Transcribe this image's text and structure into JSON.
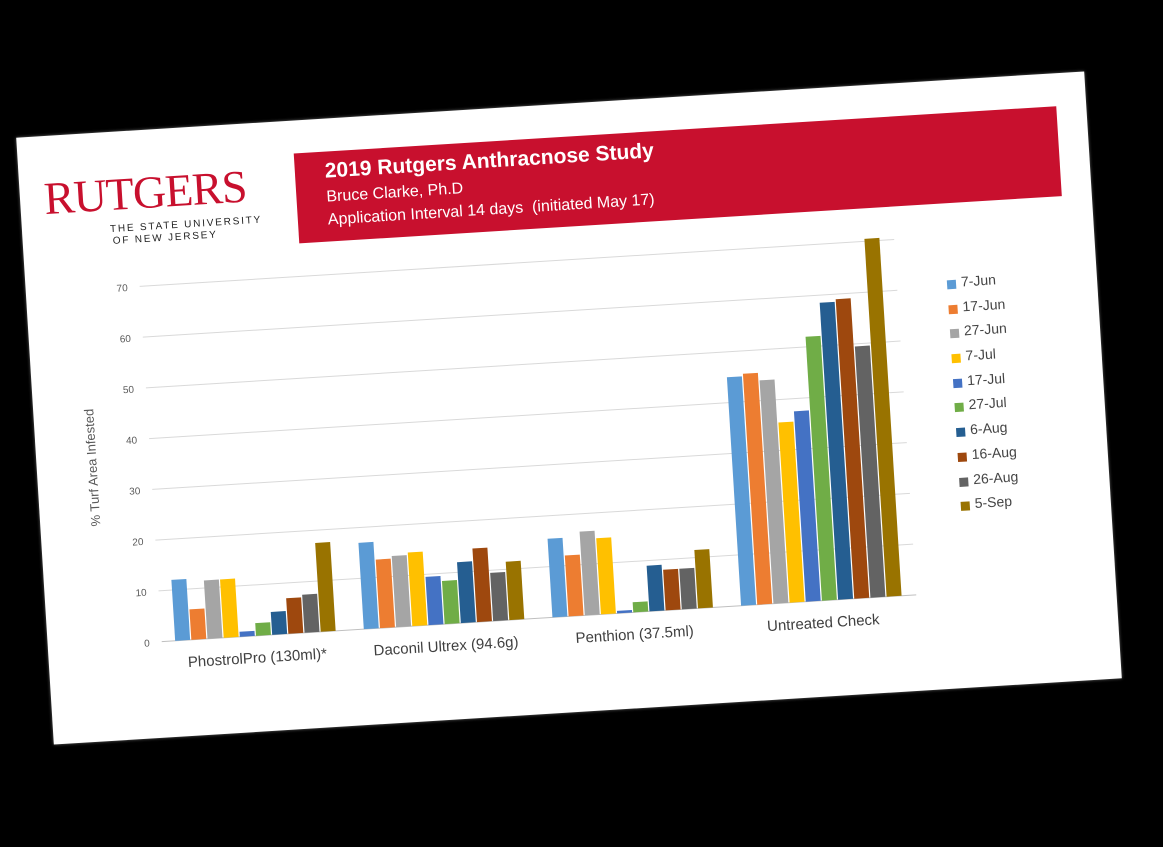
{
  "header": {
    "logo_text": "RUTGERS",
    "logo_sub_line1": "THE STATE UNIVERSITY",
    "logo_sub_line2": "OF NEW JERSEY",
    "title": "2019 Rutgers Anthracnose Study",
    "author": "Bruce Clarke, Ph.D",
    "interval": "Application Interval 14 days  (initiated May 17)",
    "banner_color": "#c8102e"
  },
  "chart_data": {
    "type": "bar",
    "title": "",
    "xlabel": "",
    "ylabel": "% Turf Area Infested",
    "ylim": [
      0,
      70
    ],
    "yticks": [
      0,
      10,
      20,
      30,
      40,
      50,
      60,
      70
    ],
    "grid": true,
    "legend_position": "right",
    "categories": [
      "PhostrolPro (130ml)*",
      "Daconil Ultrex (94.6g)",
      "Penthion (37.5ml)",
      "Untreated Check"
    ],
    "series": [
      {
        "name": "7-Jun",
        "color": "#5b9bd5",
        "values": [
          12,
          17,
          15.5,
          45
        ]
      },
      {
        "name": "17-Jun",
        "color": "#ed7d31",
        "values": [
          6,
          13.5,
          12,
          45.5
        ]
      },
      {
        "name": "27-Jun",
        "color": "#a5a5a5",
        "values": [
          11.5,
          14,
          16.5,
          44
        ]
      },
      {
        "name": "7-Jul",
        "color": "#ffc000",
        "values": [
          11.5,
          14.5,
          15,
          35.5
        ]
      },
      {
        "name": "17-Jul",
        "color": "#4472c4",
        "values": [
          1,
          9.5,
          0.5,
          37.5
        ]
      },
      {
        "name": "27-Jul",
        "color": "#70ad47",
        "values": [
          2.5,
          8.5,
          2,
          52
        ]
      },
      {
        "name": "6-Aug",
        "color": "#255e91",
        "values": [
          4.5,
          12,
          9,
          58.5
        ]
      },
      {
        "name": "16-Aug",
        "color": "#9e480e",
        "values": [
          7,
          14.5,
          8,
          59
        ]
      },
      {
        "name": "26-Aug",
        "color": "#636363",
        "values": [
          7.5,
          9.5,
          8,
          49.5
        ]
      },
      {
        "name": "5-Sep",
        "color": "#997300",
        "values": [
          17.5,
          11.5,
          11.5,
          70.5
        ]
      }
    ]
  }
}
